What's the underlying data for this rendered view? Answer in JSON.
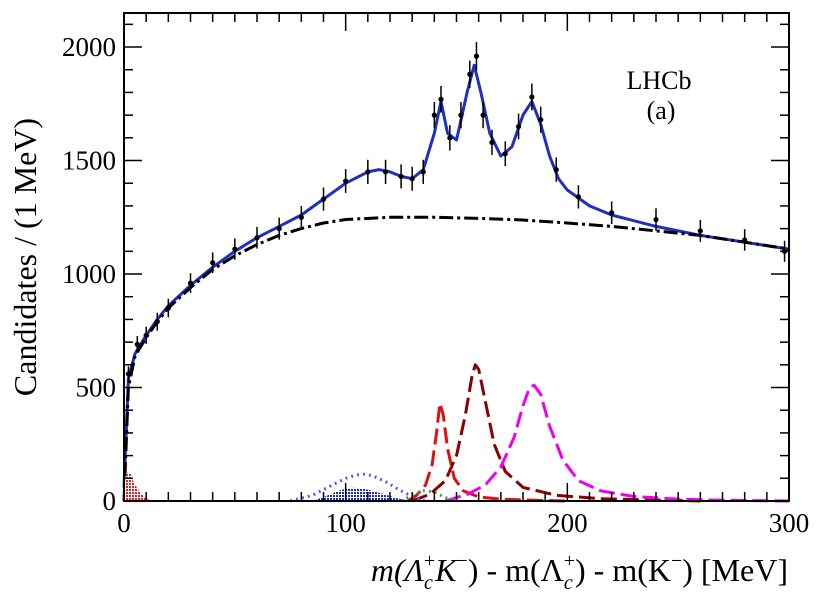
{
  "chart_data": {
    "type": "line",
    "xlabel": {
      "pre": "m(Λ",
      "sub1": "c",
      "sup1": "+",
      "mid1": "K",
      "sup2": "−",
      "mid2": ") - m(Λ",
      "sub3": "c",
      "sup3": "+",
      "mid3": ") - m(K",
      "sup4": "−",
      "post": ") [MeV]"
    },
    "ylabel": "Candidates / (1 MeV)",
    "annotations": [
      "LHCb",
      "(a)"
    ],
    "xlim": [
      0,
      300
    ],
    "ylim": [
      0,
      2150
    ],
    "x_ticks": [
      0,
      100,
      200,
      300
    ],
    "y_ticks": [
      0,
      500,
      1000,
      1500,
      2000
    ],
    "series": [
      {
        "name": "Data",
        "style": "points-with-errors",
        "color": "#000000",
        "x": [
          2,
          6,
          10,
          15,
          20,
          30,
          40,
          50,
          60,
          70,
          80,
          90,
          100,
          110,
          118,
          125,
          130,
          135,
          140,
          143,
          147,
          152,
          156,
          159,
          162,
          166,
          172,
          178,
          184,
          188,
          195,
          205,
          220,
          240,
          260,
          280,
          298
        ],
        "y": [
          560,
          690,
          730,
          790,
          850,
          960,
          1050,
          1110,
          1160,
          1200,
          1250,
          1330,
          1410,
          1450,
          1450,
          1430,
          1420,
          1450,
          1700,
          1770,
          1600,
          1700,
          1880,
          1960,
          1700,
          1580,
          1530,
          1650,
          1780,
          1680,
          1460,
          1340,
          1270,
          1240,
          1190,
          1150,
          1100
        ]
      },
      {
        "name": "Total fit",
        "style": "solid",
        "color": "#1f2fbf",
        "x": [
          0,
          2,
          5,
          10,
          15,
          20,
          30,
          40,
          50,
          60,
          70,
          80,
          90,
          100,
          110,
          115,
          120,
          125,
          130,
          135,
          140,
          143,
          146,
          150,
          155,
          158,
          161,
          165,
          170,
          175,
          180,
          184,
          188,
          192,
          196,
          200,
          210,
          220,
          240,
          260,
          280,
          300
        ],
        "y": [
          60,
          540,
          650,
          730,
          800,
          860,
          950,
          1030,
          1100,
          1160,
          1210,
          1260,
          1330,
          1400,
          1450,
          1460,
          1450,
          1430,
          1420,
          1460,
          1620,
          1760,
          1620,
          1590,
          1810,
          1920,
          1800,
          1620,
          1520,
          1560,
          1700,
          1760,
          1660,
          1520,
          1420,
          1370,
          1300,
          1260,
          1210,
          1170,
          1140,
          1110
        ]
      },
      {
        "name": "Background",
        "style": "dash-dot",
        "color": "#000000",
        "x": [
          0,
          2,
          5,
          10,
          15,
          20,
          30,
          40,
          50,
          60,
          70,
          80,
          90,
          100,
          120,
          140,
          160,
          180,
          200,
          220,
          240,
          260,
          280,
          300
        ],
        "y": [
          0,
          500,
          640,
          720,
          790,
          850,
          940,
          1020,
          1080,
          1130,
          1170,
          1200,
          1225,
          1240,
          1250,
          1250,
          1245,
          1238,
          1225,
          1210,
          1190,
          1170,
          1140,
          1110
        ]
      },
      {
        "name": "Peak 1",
        "style": "long-dash",
        "color": "#e01010",
        "x": [
          128,
          132,
          136,
          139,
          141,
          142.5,
          144,
          146,
          149,
          153,
          160,
          170,
          185,
          200
        ],
        "y": [
          0,
          25,
          70,
          160,
          300,
          430,
          380,
          230,
          100,
          45,
          18,
          8,
          3,
          0
        ]
      },
      {
        "name": "Peak 2",
        "style": "long-dash",
        "color": "#8b0000",
        "x": [
          130,
          138,
          145,
          150,
          154,
          157,
          158.5,
          160,
          163,
          167,
          172,
          180,
          195,
          215,
          240,
          260
        ],
        "y": [
          0,
          30,
          90,
          200,
          380,
          550,
          600,
          580,
          440,
          250,
          130,
          60,
          25,
          10,
          4,
          0
        ]
      },
      {
        "name": "Peak 3",
        "style": "long-dash",
        "color": "#ee00ee",
        "x": [
          145,
          155,
          163,
          170,
          176,
          180,
          183,
          185,
          188,
          192,
          198,
          205,
          215,
          230,
          250,
          270,
          300
        ],
        "y": [
          0,
          30,
          70,
          150,
          280,
          420,
          500,
          510,
          470,
          330,
          180,
          90,
          45,
          20,
          8,
          3,
          0
        ]
      },
      {
        "name": "Partial reco (dotted)",
        "style": "dotted",
        "color": "#5a5ae0",
        "x": [
          75,
          85,
          93,
          100,
          105,
          108,
          112,
          118,
          124,
          130,
          136
        ],
        "y": [
          0,
          25,
          65,
          100,
          115,
          118,
          112,
          85,
          50,
          20,
          0
        ]
      },
      {
        "name": "Partial reco (filled)",
        "style": "filled-hatch",
        "color": "#1a2ad0",
        "x": [
          85,
          92,
          98,
          103,
          107,
          112,
          118,
          124,
          130
        ],
        "y": [
          0,
          25,
          50,
          58,
          56,
          45,
          28,
          10,
          0
        ]
      },
      {
        "name": "Threshold (filled)",
        "style": "filled-hatch",
        "color": "#e02020",
        "x": [
          0,
          1,
          2,
          3,
          4,
          6,
          8,
          10,
          12
        ],
        "y": [
          60,
          120,
          128,
          118,
          90,
          55,
          30,
          12,
          0
        ]
      },
      {
        "name": "Other (green dotted)",
        "style": "dotted",
        "color": "#40a040",
        "x": [
          125,
          130,
          135,
          140,
          145,
          150
        ],
        "y": [
          0,
          25,
          45,
          40,
          15,
          0
        ]
      }
    ]
  }
}
